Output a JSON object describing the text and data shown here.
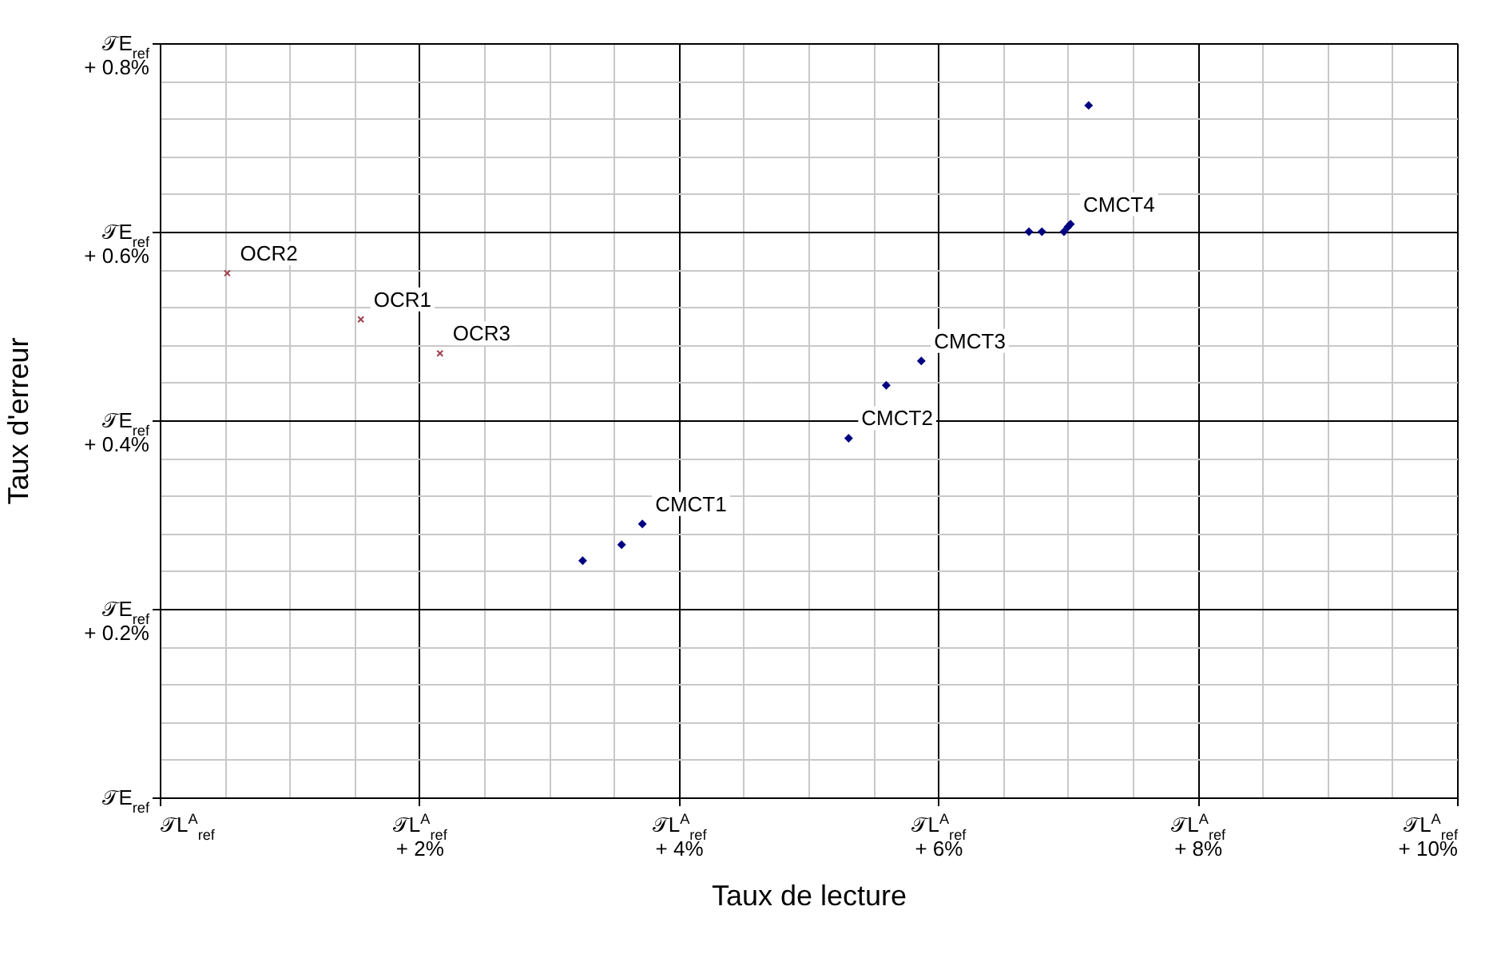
{
  "chart_data": {
    "type": "scatter",
    "xlabel": "Taux de lecture",
    "ylabel": "Taux d'erreur",
    "xlim": [
      0,
      10
    ],
    "ylim": [
      0,
      0.8
    ],
    "xticks": [
      {
        "value": 0,
        "label": "𝒯L$^{A}$$_{ref}$"
      },
      {
        "value": 0.5,
        "label": null
      },
      {
        "value": 1,
        "label": null
      },
      {
        "value": 1.5,
        "label": null
      },
      {
        "value": 2,
        "label": "𝒯L$^{A}$$_{ref}$\n+ 2%"
      },
      {
        "value": 2.5,
        "label": null
      },
      {
        "value": 3,
        "label": null
      },
      {
        "value": 3.5,
        "label": null
      },
      {
        "value": 4,
        "label": "𝒯L$^{A}$$_{ref}$\n+ 4%"
      },
      {
        "value": 4.5,
        "label": null
      },
      {
        "value": 5,
        "label": null
      },
      {
        "value": 5.5,
        "label": null
      },
      {
        "value": 6,
        "label": "𝒯L$^{A}$$_{ref}$\n+ 6%"
      },
      {
        "value": 6.5,
        "label": null
      },
      {
        "value": 7,
        "label": null
      },
      {
        "value": 7.5,
        "label": null
      },
      {
        "value": 8,
        "label": "𝒯L$^{A}$$_{ref}$\n+ 8%"
      },
      {
        "value": 8.5,
        "label": null
      },
      {
        "value": 9,
        "label": null
      },
      {
        "value": 9.5,
        "label": null
      },
      {
        "value": 10,
        "label": "𝒯L$^{A}$$_{ref}$\n+ 10%"
      }
    ],
    "yticks": [
      {
        "value": 0,
        "label": "𝒯E$_{ref}$"
      },
      {
        "value": 0.04,
        "label": null
      },
      {
        "value": 0.08,
        "label": null
      },
      {
        "value": 0.12,
        "label": null
      },
      {
        "value": 0.16,
        "label": null
      },
      {
        "value": 0.2,
        "label": "𝒯E$_{ref}$\n+ 0.2%"
      },
      {
        "value": 0.24,
        "label": null
      },
      {
        "value": 0.28,
        "label": null
      },
      {
        "value": 0.32,
        "label": null
      },
      {
        "value": 0.36,
        "label": null
      },
      {
        "value": 0.4,
        "label": "𝒯E$_{ref}$\n+ 0.4%"
      },
      {
        "value": 0.44,
        "label": null
      },
      {
        "value": 0.48,
        "label": null
      },
      {
        "value": 0.52,
        "label": null
      },
      {
        "value": 0.56,
        "label": null
      },
      {
        "value": 0.6,
        "label": "𝒯E$_{ref}$\n+ 0.6%"
      },
      {
        "value": 0.64,
        "label": null
      },
      {
        "value": 0.68,
        "label": null
      },
      {
        "value": 0.72,
        "label": null
      },
      {
        "value": 0.76,
        "label": null
      },
      {
        "value": 0.8,
        "label": "𝒯E$_{ref}$\n+ 0.8%"
      }
    ],
    "grid": true,
    "series": [
      {
        "color": "#a04050",
        "marker": "cross",
        "x": [
          0.52,
          1.55,
          2.16
        ],
        "values": [
          0.556,
          0.507,
          0.471
        ]
      },
      {
        "color": "#000080",
        "marker": "diamond",
        "x": [
          3.26,
          3.56,
          3.72,
          5.31,
          5.6,
          5.87,
          6.7,
          6.8,
          6.97,
          7.0,
          7.02,
          7.16
        ],
        "values": [
          0.251,
          0.268,
          0.29,
          0.381,
          0.437,
          0.463,
          0.6,
          0.6,
          0.6,
          0.605,
          0.608,
          0.734
        ]
      }
    ],
    "annotations": [
      {
        "text": "OCR2",
        "x": 0.52,
        "y": 0.556
      },
      {
        "text": "OCR1",
        "x": 1.55,
        "y": 0.507
      },
      {
        "text": "OCR3",
        "x": 2.16,
        "y": 0.471
      },
      {
        "text": "CMCT1",
        "x": 3.72,
        "y": 0.29
      },
      {
        "text": "CMCT2",
        "x": 5.31,
        "y": 0.381
      },
      {
        "text": "CMCT3",
        "x": 5.87,
        "y": 0.463
      },
      {
        "text": "CMCT4",
        "x": 7.02,
        "y": 0.608
      }
    ]
  }
}
